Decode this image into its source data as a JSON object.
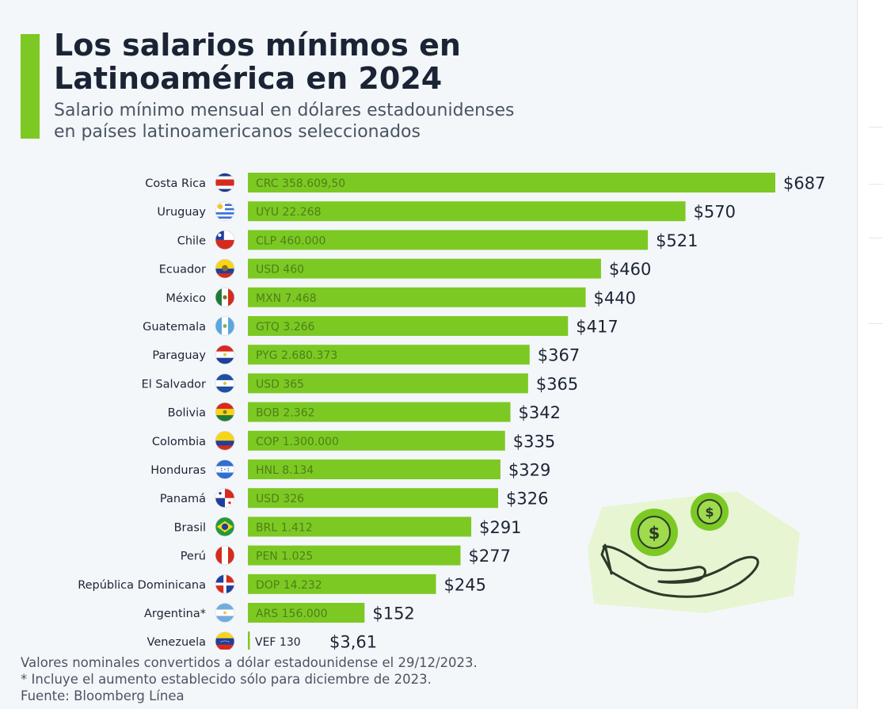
{
  "title_line1": "Los salarios mínimos en",
  "title_line2": "Latinoamérica en 2024",
  "subtitle_line1": "Salario mínimo mensual en dólares estadounidenses",
  "subtitle_line2": "en países latinoamericanos seleccionados",
  "colors": {
    "bar": "#7cc924",
    "accent": "#7cc924",
    "text": "#1b2434"
  },
  "chart_data": {
    "type": "bar",
    "orientation": "horizontal",
    "title": "Los salarios mínimos en Latinoamérica en 2024",
    "xlabel": "",
    "ylabel": "",
    "xlim": [
      0,
      687
    ],
    "categories": [
      "Costa Rica",
      "Uruguay",
      "Chile",
      "Ecuador",
      "México",
      "Guatemala",
      "Paraguay",
      "El Salvador",
      "Bolivia",
      "Colombia",
      "Honduras",
      "Panamá",
      "Brasil",
      "Perú",
      "República Dominicana",
      "Argentina*",
      "Venezuela"
    ],
    "values": [
      687,
      570,
      521,
      460,
      440,
      417,
      367,
      365,
      342,
      335,
      329,
      326,
      291,
      277,
      245,
      152,
      3.61
    ],
    "value_labels": [
      "$687",
      "$570",
      "$521",
      "$460",
      "$440",
      "$417",
      "$367",
      "$365",
      "$342",
      "$335",
      "$329",
      "$326",
      "$291",
      "$277",
      "$245",
      "$152",
      "$3,61"
    ],
    "local_currency_labels": [
      "CRC 358.609,50",
      "UYU 22.268",
      "CLP 460.000",
      "USD 460",
      "MXN 7.468",
      "GTQ 3.266",
      "PYG 2.680.373",
      "USD 365",
      "BOB 2.362",
      "COP 1.300.000",
      "HNL 8.134",
      "USD 326",
      "BRL 1.412",
      "PEN 1.025",
      "DOP 14.232",
      "ARS 156.000",
      "VEF 130"
    ],
    "flag_icons": [
      "flag-costa-rica-icon",
      "flag-uruguay-icon",
      "flag-chile-icon",
      "flag-ecuador-icon",
      "flag-mexico-icon",
      "flag-guatemala-icon",
      "flag-paraguay-icon",
      "flag-el-salvador-icon",
      "flag-bolivia-icon",
      "flag-colombia-icon",
      "flag-honduras-icon",
      "flag-panama-icon",
      "flag-brasil-icon",
      "flag-peru-icon",
      "flag-republica-dominicana-icon",
      "flag-argentina-icon",
      "flag-venezuela-icon"
    ]
  },
  "footer": {
    "note1": "Valores nominales convertidos a dólar estadounidense el 29/12/2023.",
    "note2": "* Incluye el aumento establecido sólo para diciembre de 2023.",
    "source": "Fuente: Bloomberg Línea"
  },
  "illustration_icon": "hand-receiving-coins-icon",
  "coin_symbol": "$"
}
